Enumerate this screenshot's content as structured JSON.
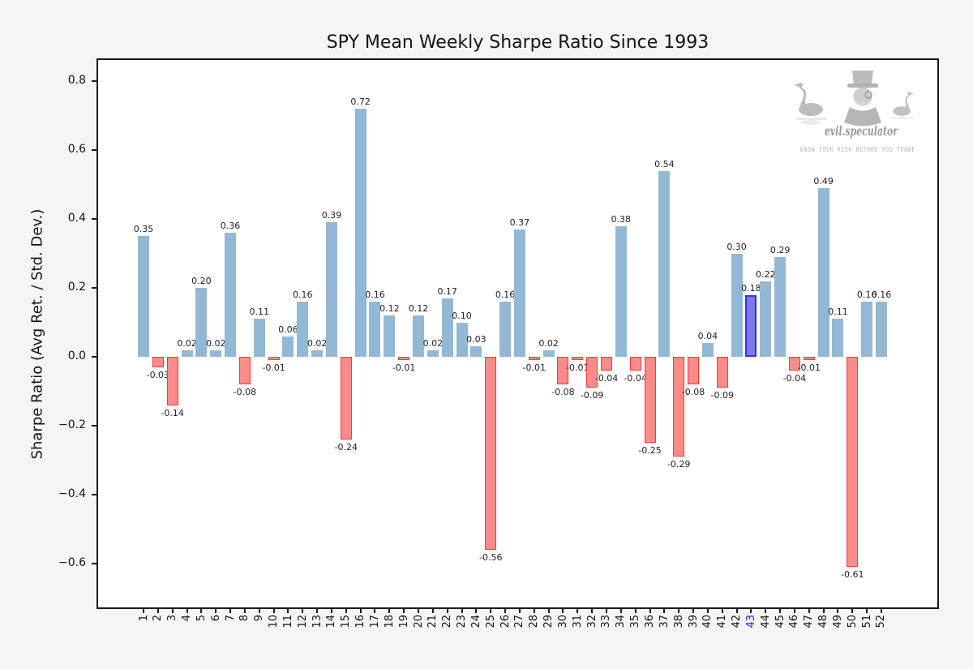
{
  "figure": {
    "background": "#f5f5f5",
    "plot_background": "#ffffff"
  },
  "chart_data": {
    "type": "bar",
    "title": "SPY Mean Weekly Sharpe Ratio Since 1993",
    "ylabel": "Sharpe Ratio (Avg Ret. / Std. Dev.)",
    "xlabel": "",
    "grid": false,
    "legend": null,
    "categories": [
      "1",
      "2",
      "3",
      "4",
      "5",
      "6",
      "7",
      "8",
      "9",
      "10",
      "11",
      "12",
      "13",
      "14",
      "15",
      "16",
      "17",
      "18",
      "19",
      "20",
      "21",
      "22",
      "23",
      "24",
      "25",
      "26",
      "27",
      "28",
      "29",
      "30",
      "31",
      "32",
      "33",
      "34",
      "35",
      "36",
      "37",
      "38",
      "39",
      "40",
      "41",
      "42",
      "43",
      "44",
      "45",
      "46",
      "47",
      "48",
      "49",
      "50",
      "51",
      "52"
    ],
    "values": [
      0.35,
      -0.03,
      -0.14,
      0.02,
      0.2,
      0.02,
      0.36,
      -0.08,
      0.11,
      -0.01,
      0.06,
      0.16,
      0.02,
      0.39,
      -0.24,
      0.72,
      0.16,
      0.12,
      -0.01,
      0.12,
      0.02,
      0.17,
      0.1,
      0.03,
      -0.56,
      0.16,
      0.37,
      -0.01,
      0.02,
      -0.08,
      -0.01,
      -0.09,
      -0.04,
      0.38,
      -0.04,
      -0.25,
      0.54,
      -0.29,
      -0.08,
      0.04,
      -0.09,
      0.3,
      0.18,
      0.22,
      0.29,
      -0.04,
      -0.01,
      0.49,
      0.11,
      -0.61,
      0.16,
      0.16
    ],
    "bar_labels": [
      "0.35",
      "-0.03",
      "-0.14",
      "0.02",
      "0.20",
      "0.02",
      "0.36",
      "-0.08",
      "0.11",
      "-0.01",
      "0.06",
      "0.16",
      "0.02",
      "0.39",
      "-0.24",
      "0.72",
      "0.16",
      "0.12",
      "-0.01",
      "0.12",
      "0.02",
      "0.17",
      "0.10",
      "0.03",
      "-0.56",
      "0.16",
      "0.37",
      "-0.01",
      "0.02",
      "-0.08",
      "-0.01",
      "-0.09",
      "-0.04",
      "0.38",
      "-0.04",
      "-0.25",
      "0.54",
      "-0.29",
      "-0.08",
      "0.04",
      "-0.09",
      "0.30",
      "0.18",
      "0.22",
      "0.29",
      "-0.04",
      "-0.01",
      "0.49",
      "0.11",
      "-0.61",
      "0.16",
      "0.16"
    ],
    "highlighted_category": "43",
    "yticks": [
      "0.8",
      "0.6",
      "0.4",
      "0.2",
      "0.0",
      "−0.2",
      "−0.4",
      "−0.6"
    ],
    "ytick_values": [
      0.8,
      0.6,
      0.4,
      0.2,
      0.0,
      -0.2,
      -0.4,
      -0.6
    ],
    "ylim": [
      -0.729,
      0.864
    ],
    "colors": {
      "positive_bar": "#92b8d6",
      "negative_bar_fill": "#fb8a8a",
      "negative_bar_border": "#f03c3c",
      "highlight_bar_fill": "#7d78ee",
      "highlight_bar_border": "#3434dd",
      "highlight_tick": "#2222dd",
      "tick_text": "#141414"
    }
  },
  "watermark": {
    "brand": "evil.speculator",
    "tagline": "KNOW YOUR RISK BEFORE YOU TRADE"
  }
}
